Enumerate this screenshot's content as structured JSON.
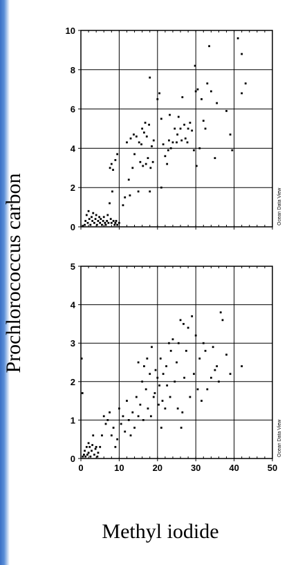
{
  "figure": {
    "ylabel": "Prochlorococcus carbon",
    "xlabel": "Methyl iodide",
    "watermark": "Ocean Data View",
    "colors": {
      "background": "#ffffff",
      "accent_strip": "#3a6fc4",
      "points": "#000000",
      "grid": "#000000"
    }
  },
  "chart_data": [
    {
      "type": "scatter",
      "title": "",
      "xlabel": "",
      "ylabel": "",
      "xlim": [
        0,
        50
      ],
      "ylim": [
        0,
        10
      ],
      "xticks": [
        0,
        10,
        20,
        30,
        40,
        50
      ],
      "yticks": [
        0,
        2,
        4,
        6,
        8,
        10
      ],
      "ytick_labels": [
        "0",
        "2",
        "4",
        "6",
        "8",
        "10"
      ],
      "xtick_labels_shown": false,
      "grid": true,
      "series": [
        {
          "points": [
            [
              0.5,
              0.05
            ],
            [
              1,
              0.1
            ],
            [
              1.2,
              0.3
            ],
            [
              1.5,
              0.6
            ],
            [
              1.8,
              0.2
            ],
            [
              2,
              0.8
            ],
            [
              2.2,
              0.4
            ],
            [
              2.5,
              0.1
            ],
            [
              2.8,
              0.5
            ],
            [
              3,
              0.3
            ],
            [
              3.2,
              0.7
            ],
            [
              3.5,
              0.2
            ],
            [
              3.8,
              0.4
            ],
            [
              4,
              0.6
            ],
            [
              4.2,
              0.1
            ],
            [
              4.5,
              0.3
            ],
            [
              4.8,
              0.5
            ],
            [
              5,
              0.2
            ],
            [
              5.2,
              0.4
            ],
            [
              5.5,
              0.1
            ],
            [
              5.8,
              0.3
            ],
            [
              6,
              0.5
            ],
            [
              6.3,
              0.2
            ],
            [
              6.5,
              0.1
            ],
            [
              6.8,
              0.3
            ],
            [
              7,
              0.6
            ],
            [
              7.2,
              0.2
            ],
            [
              7.5,
              1.2
            ],
            [
              7.8,
              0.4
            ],
            [
              8,
              0.2
            ],
            [
              8.2,
              1.8
            ],
            [
              8.5,
              0.3
            ],
            [
              8.8,
              0.1
            ],
            [
              9,
              0.2
            ],
            [
              9.2,
              0.3
            ],
            [
              9.5,
              0.1
            ],
            [
              7.6,
              3.0
            ],
            [
              8,
              3.2
            ],
            [
              8.4,
              2.9
            ],
            [
              9,
              3.4
            ],
            [
              9.5,
              3.7
            ],
            [
              10,
              0.2
            ],
            [
              11,
              1.1
            ],
            [
              11.5,
              1.5
            ],
            [
              12,
              4.3
            ],
            [
              12.5,
              2.4
            ],
            [
              12.8,
              1.6
            ],
            [
              13,
              4.5
            ],
            [
              13.5,
              3.0
            ],
            [
              13.8,
              4.7
            ],
            [
              14,
              3.7
            ],
            [
              14.5,
              4.6
            ],
            [
              15,
              1.8
            ],
            [
              15.2,
              4.3
            ],
            [
              15.5,
              3.3
            ],
            [
              15.8,
              4.2
            ],
            [
              16,
              5.0
            ],
            [
              16.2,
              3.1
            ],
            [
              16.5,
              4.8
            ],
            [
              16.8,
              5.3
            ],
            [
              17,
              3.2
            ],
            [
              17.2,
              4.6
            ],
            [
              17.5,
              3.5
            ],
            [
              17.8,
              5.2
            ],
            [
              18,
              1.8
            ],
            [
              18.2,
              3.0
            ],
            [
              18.5,
              4.1
            ],
            [
              18.8,
              3.3
            ],
            [
              19,
              4.4
            ],
            [
              20,
              6.5
            ],
            [
              20.5,
              6.8
            ],
            [
              21,
              2.0
            ],
            [
              21,
              5.5
            ],
            [
              21.5,
              4.2
            ],
            [
              22,
              3.6
            ],
            [
              22.5,
              3.2
            ],
            [
              22.8,
              3.9
            ],
            [
              23,
              4.4
            ],
            [
              23.2,
              5.7
            ],
            [
              23.5,
              4.0
            ],
            [
              24,
              4.3
            ],
            [
              24.5,
              5.0
            ],
            [
              25,
              4.3
            ],
            [
              25.2,
              4.7
            ],
            [
              25.5,
              5.6
            ],
            [
              26,
              5.0
            ],
            [
              26.3,
              4.4
            ],
            [
              26.5,
              6.6
            ],
            [
              27,
              5.2
            ],
            [
              27.3,
              4.5
            ],
            [
              27.8,
              4.3
            ],
            [
              28,
              5.0
            ],
            [
              28.5,
              5.3
            ],
            [
              29,
              4.9
            ],
            [
              29.5,
              3.9
            ],
            [
              29.8,
              8.2
            ],
            [
              30,
              6.9
            ],
            [
              30.2,
              3.1
            ],
            [
              30.5,
              7.0
            ],
            [
              31,
              4.0
            ],
            [
              31.5,
              6.5
            ],
            [
              32,
              5.4
            ],
            [
              32.5,
              5.0
            ],
            [
              33,
              7.3
            ],
            [
              33.5,
              9.2
            ],
            [
              34,
              6.9
            ],
            [
              35,
              3.5
            ],
            [
              35.5,
              6.3
            ],
            [
              38,
              5.9
            ],
            [
              39,
              4.7
            ],
            [
              39.5,
              3.9
            ],
            [
              41,
              9.6
            ],
            [
              42,
              8.8
            ],
            [
              42,
              6.8
            ],
            [
              43,
              7.3
            ],
            [
              18,
              7.6
            ]
          ]
        }
      ]
    },
    {
      "type": "scatter",
      "title": "",
      "xlabel": "",
      "ylabel": "",
      "xlim": [
        0,
        50
      ],
      "ylim": [
        0,
        5
      ],
      "xticks": [
        0,
        10,
        20,
        30,
        40,
        50
      ],
      "yticks": [
        0,
        1,
        2,
        3,
        4,
        5
      ],
      "xtick_labels": [
        "0",
        "10",
        "20",
        "30",
        "40",
        "50"
      ],
      "ytick_labels": [
        "0",
        "1",
        "2",
        "3",
        "4",
        "5"
      ],
      "grid": true,
      "series": [
        {
          "points": [
            [
              0.2,
              2.6
            ],
            [
              0.4,
              1.7
            ],
            [
              0.5,
              0.05
            ],
            [
              0.8,
              0.1
            ],
            [
              1,
              0.2
            ],
            [
              1.2,
              0.05
            ],
            [
              1.5,
              0.3
            ],
            [
              1.7,
              0.1
            ],
            [
              2,
              0.4
            ],
            [
              2,
              0.15
            ],
            [
              2.3,
              0.3
            ],
            [
              2.5,
              0.05
            ],
            [
              2.8,
              0.2
            ],
            [
              3,
              0.35
            ],
            [
              3.2,
              0.6
            ],
            [
              3.5,
              0.1
            ],
            [
              3.8,
              0.25
            ],
            [
              4,
              0.3
            ],
            [
              4.3,
              0.05
            ],
            [
              4.5,
              0.15
            ],
            [
              5,
              0.3
            ],
            [
              5.5,
              0.6
            ],
            [
              6,
              1.1
            ],
            [
              6.5,
              0.9
            ],
            [
              7,
              1.0
            ],
            [
              7.5,
              1.2
            ],
            [
              8,
              0.6
            ],
            [
              8.5,
              0.8
            ],
            [
              9,
              0.3
            ],
            [
              9.5,
              0.5
            ],
            [
              10,
              1.3
            ],
            [
              10.5,
              0.9
            ],
            [
              11,
              1.1
            ],
            [
              11.5,
              0.7
            ],
            [
              12,
              1.5
            ],
            [
              12.5,
              1.0
            ],
            [
              13,
              0.6
            ],
            [
              13.5,
              1.2
            ],
            [
              14,
              0.8
            ],
            [
              14.5,
              1.6
            ],
            [
              15,
              2.5
            ],
            [
              15,
              1.1
            ],
            [
              15.5,
              1.4
            ],
            [
              16,
              2.0
            ],
            [
              16.3,
              1.0
            ],
            [
              16.5,
              2.4
            ],
            [
              17,
              1.8
            ],
            [
              17.3,
              2.6
            ],
            [
              17.5,
              1.3
            ],
            [
              18,
              2.2
            ],
            [
              18.3,
              1.1
            ],
            [
              18.5,
              2.9
            ],
            [
              19,
              1.6
            ],
            [
              19.3,
              1.7
            ],
            [
              19.5,
              2.3
            ],
            [
              20,
              2.1
            ],
            [
              20.3,
              1.4
            ],
            [
              20.5,
              1.9
            ],
            [
              20.8,
              2.6
            ],
            [
              21,
              0.8
            ],
            [
              21.3,
              1.5
            ],
            [
              21.5,
              2.2
            ],
            [
              22,
              1.3
            ],
            [
              22.3,
              2.4
            ],
            [
              22.5,
              1.9
            ],
            [
              23,
              3.0
            ],
            [
              23.3,
              1.6
            ],
            [
              23.5,
              2.8
            ],
            [
              24,
              3.1
            ],
            [
              24.5,
              2.0
            ],
            [
              25,
              2.5
            ],
            [
              25.3,
              1.3
            ],
            [
              25.5,
              3.0
            ],
            [
              26,
              3.6
            ],
            [
              26.2,
              0.8
            ],
            [
              26.5,
              1.2
            ],
            [
              26.8,
              3.5
            ],
            [
              27,
              2.1
            ],
            [
              27.5,
              2.8
            ],
            [
              28,
              3.4
            ],
            [
              28.5,
              1.6
            ],
            [
              29,
              3.7
            ],
            [
              29.5,
              2.2
            ],
            [
              30,
              3.2
            ],
            [
              30.5,
              1.8
            ],
            [
              31,
              2.6
            ],
            [
              31.5,
              1.5
            ],
            [
              32,
              3.0
            ],
            [
              32.5,
              2.8
            ],
            [
              33,
              1.8
            ],
            [
              34,
              2.1
            ],
            [
              35,
              2.3
            ],
            [
              35.5,
              2.4
            ],
            [
              36,
              2.0
            ],
            [
              36.5,
              3.8
            ],
            [
              37,
              3.6
            ],
            [
              38,
              2.7
            ],
            [
              39,
              2.2
            ],
            [
              42,
              2.4
            ],
            [
              34.5,
              2.9
            ]
          ]
        }
      ]
    }
  ]
}
